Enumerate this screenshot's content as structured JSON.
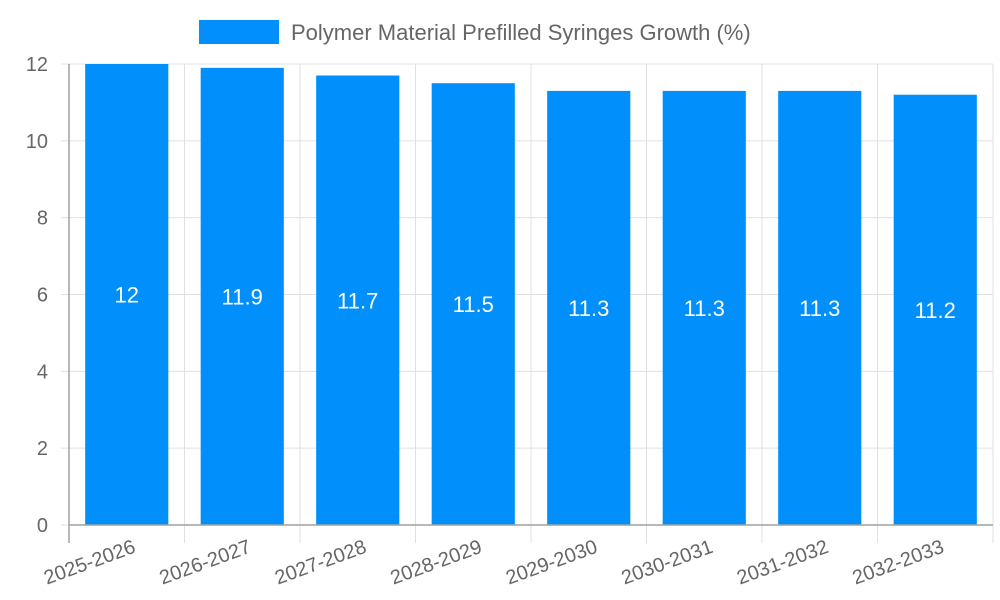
{
  "chart_data": {
    "type": "bar",
    "title": "",
    "xlabel": "",
    "ylabel": "",
    "categories": [
      "2025-2026",
      "2026-2027",
      "2027-2028",
      "2028-2029",
      "2029-2030",
      "2030-2031",
      "2031-2032",
      "2032-2033"
    ],
    "series": [
      {
        "name": "Polymer Material Prefilled Syringes Growth (%)",
        "values": [
          12,
          11.9,
          11.7,
          11.5,
          11.3,
          11.3,
          11.3,
          11.2
        ],
        "color": "#008ffb"
      }
    ],
    "ylim": [
      0,
      12
    ],
    "yticks": [
      0,
      2,
      4,
      6,
      8,
      10,
      12
    ],
    "grid": true,
    "legend_position": "top",
    "data_labels": true
  },
  "legend": {
    "label": "Polymer Material Prefilled Syringes Growth (%)",
    "color": "#008ffb"
  },
  "colors": {
    "bar": "#008ffb",
    "grid": "#e0e0e0",
    "axis": "#a0a0a0",
    "text": "#666666"
  }
}
